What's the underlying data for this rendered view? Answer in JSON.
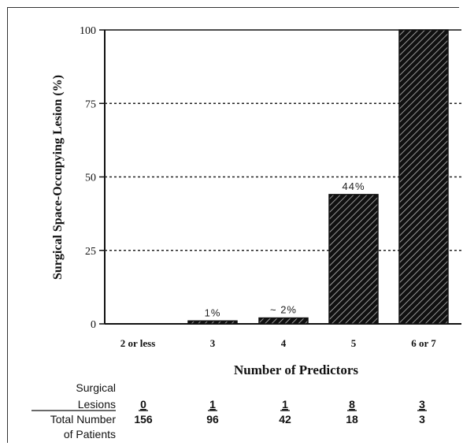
{
  "chart_data": {
    "type": "bar",
    "categories": [
      "2 or less",
      "3",
      "4",
      "5",
      "6 or 7"
    ],
    "values": [
      0,
      1,
      2,
      44,
      100
    ],
    "data_labels": [
      "",
      "1%",
      "~ 2%",
      "44%",
      ""
    ],
    "xlabel": "Number of Predictors",
    "ylabel": "Surgical Space-Occupying Lesion (%)",
    "ylim": [
      0,
      100
    ],
    "yticks": [
      0,
      25,
      50,
      75,
      100
    ],
    "grid": "dotted horizontal at 25, 50, 75",
    "bar_fill": "diagonal hatch"
  },
  "table": {
    "row1_label_line1": "Surgical",
    "row1_label_line2": "Lesions",
    "row1_values": [
      "0",
      "1",
      "1",
      "8",
      "3"
    ],
    "row2_label_line1": "Total Number",
    "row2_label_line2": "of Patients",
    "row2_values": [
      "156",
      "96",
      "42",
      "18",
      "3"
    ]
  },
  "colors": {
    "ink": "#111111",
    "background": "#ffffff"
  }
}
